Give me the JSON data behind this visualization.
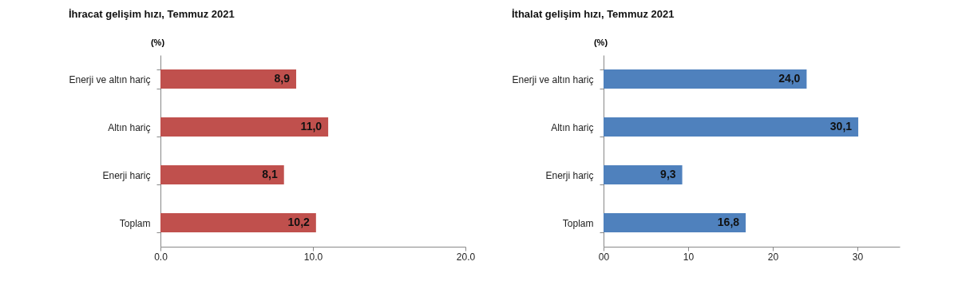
{
  "chart_data": [
    {
      "type": "bar",
      "orientation": "horizontal",
      "title": "İhracat gelişim hızı, Temmuz 2021",
      "xlabel": "(%)",
      "categories": [
        "Enerji ve altın hariç",
        "Altın hariç",
        "Enerji hariç",
        "Toplam"
      ],
      "values": [
        8.9,
        11.0,
        8.1,
        10.2
      ],
      "value_labels": [
        "8,9",
        "11,0",
        "8,1",
        "10,2"
      ],
      "color": "#c0504d",
      "xlim": [
        0,
        20
      ],
      "xticks": [
        {
          "value": 0,
          "label": "0.0"
        },
        {
          "value": 10,
          "label": "10.0"
        },
        {
          "value": 20,
          "label": "20.0"
        }
      ]
    },
    {
      "type": "bar",
      "orientation": "horizontal",
      "title": "İthalat gelişim hızı, Temmuz 2021",
      "xlabel": "(%)",
      "categories": [
        "Enerji ve altın hariç",
        "Altın hariç",
        "Enerji hariç",
        "Toplam"
      ],
      "values": [
        24.0,
        30.1,
        9.3,
        16.8
      ],
      "value_labels": [
        "24,0",
        "30,1",
        "9,3",
        "16,8"
      ],
      "color": "#4f81bd",
      "xlim": [
        0,
        35
      ],
      "xticks": [
        {
          "value": 0,
          "label": "00"
        },
        10,
        20,
        30
      ]
    }
  ]
}
